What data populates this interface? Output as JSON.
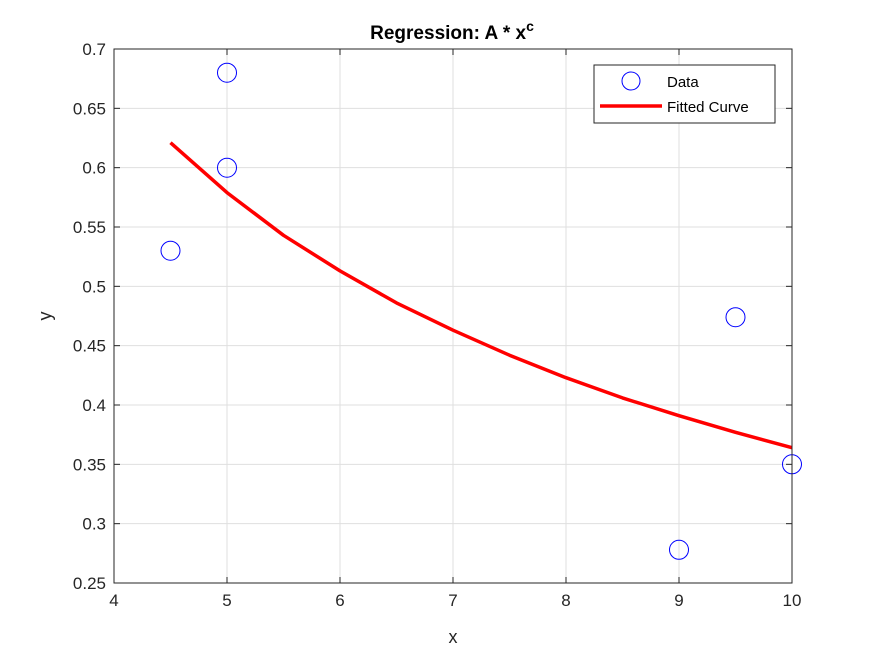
{
  "chart_data": {
    "type": "scatter",
    "title": "Regression: A * x",
    "title_superscript": "c",
    "xlabel": "x",
    "ylabel": "y",
    "xlim": [
      4,
      10
    ],
    "ylim": [
      0.25,
      0.7
    ],
    "xticks": [
      4,
      5,
      6,
      7,
      8,
      9,
      10
    ],
    "xtick_labels": [
      "4",
      "5",
      "6",
      "7",
      "8",
      "9",
      "10"
    ],
    "yticks": [
      0.25,
      0.3,
      0.35,
      0.4,
      0.45,
      0.5,
      0.55,
      0.6,
      0.65,
      0.7
    ],
    "ytick_labels": [
      "0.25",
      "0.3",
      "0.35",
      "0.4",
      "0.45",
      "0.5",
      "0.55",
      "0.6",
      "0.65",
      "0.7"
    ],
    "grid": true,
    "legend_position": "top-right",
    "series": [
      {
        "name": "Data",
        "kind": "markers",
        "marker": "circle",
        "color": "#0000ff",
        "x": [
          4.5,
          5,
          5,
          9,
          9.5,
          10
        ],
        "y": [
          0.53,
          0.68,
          0.6,
          0.278,
          0.474,
          0.35
        ]
      },
      {
        "name": "Fitted Curve",
        "kind": "line",
        "color": "#ff0000",
        "x": [
          4.5,
          5,
          5.5,
          6,
          6.5,
          7,
          7.5,
          8,
          8.5,
          9,
          9.5,
          10
        ],
        "y": [
          0.621,
          0.579,
          0.543,
          0.513,
          0.486,
          0.463,
          0.442,
          0.423,
          0.406,
          0.391,
          0.377,
          0.364
        ]
      }
    ]
  }
}
